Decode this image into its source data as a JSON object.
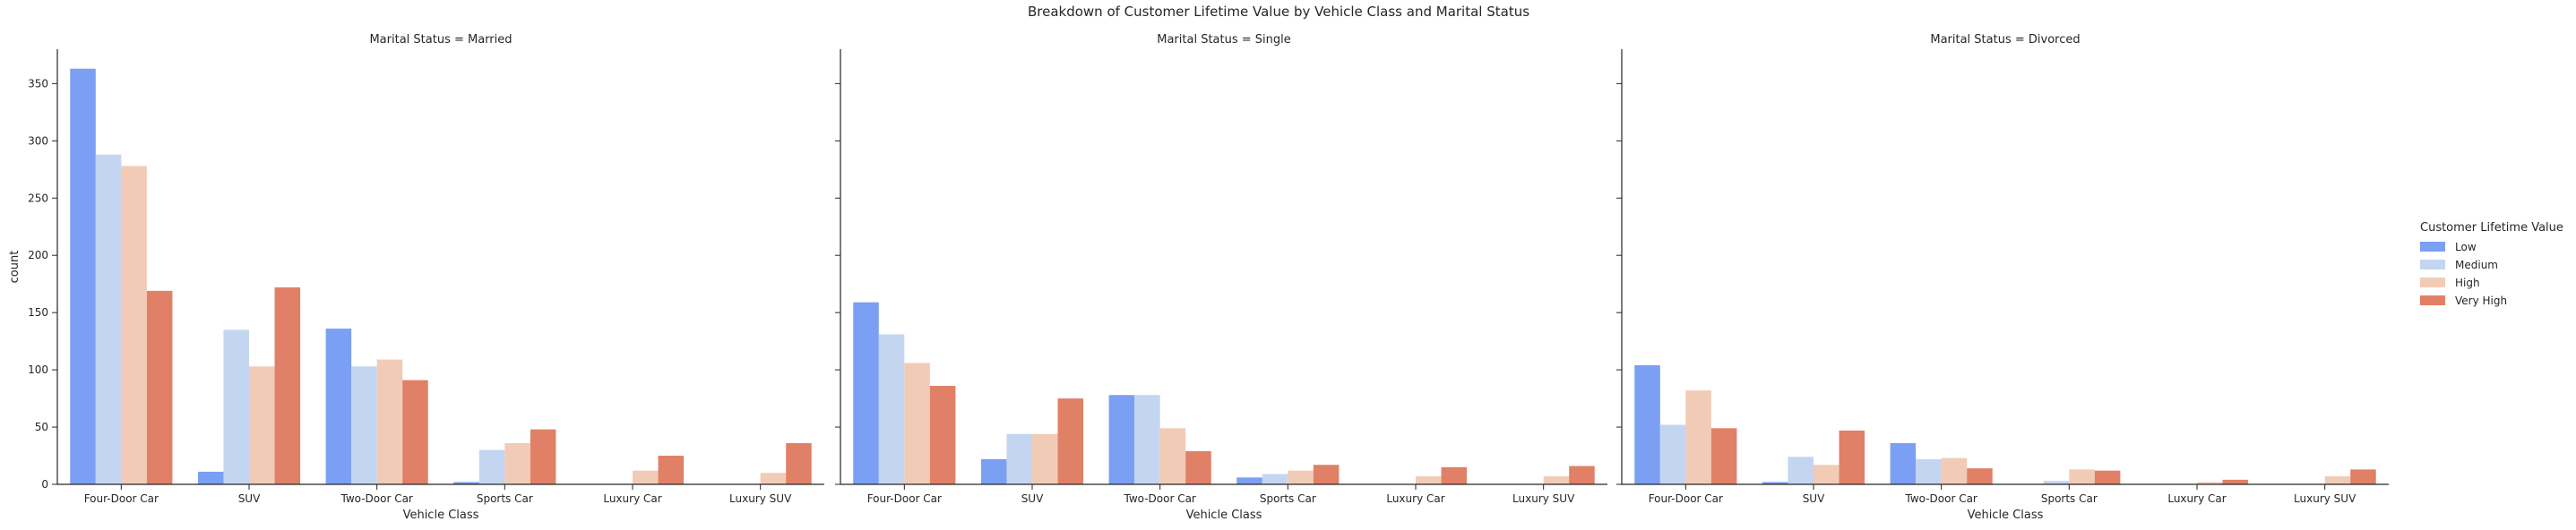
{
  "chart_data": {
    "type": "bar",
    "title": "Breakdown of Customer Lifetime Value by Vehicle Class and Marital Status",
    "xlabel": "Vehicle Class",
    "ylabel": "count",
    "ylim": [
      0,
      380
    ],
    "yticks": [
      0,
      50,
      100,
      150,
      200,
      250,
      300,
      350
    ],
    "grid": false,
    "legend": {
      "title": "Customer Lifetime Value",
      "placement": "right",
      "entries": [
        "Low",
        "Medium",
        "High",
        "Very High"
      ]
    },
    "colors": {
      "Low": "#7b9ff2",
      "Medium": "#c3d5f0",
      "High": "#f2cbb7",
      "Very High": "#e08066"
    },
    "categories": [
      "Four-Door Car",
      "SUV",
      "Two-Door Car",
      "Sports Car",
      "Luxury Car",
      "Luxury SUV"
    ],
    "panels": [
      {
        "title": "Marital Status = Married",
        "series": [
          {
            "name": "Low",
            "values": [
              363,
              11,
              136,
              2,
              0,
              0
            ]
          },
          {
            "name": "Medium",
            "values": [
              288,
              135,
              103,
              30,
              0,
              0
            ]
          },
          {
            "name": "High",
            "values": [
              278,
              103,
              109,
              36,
              12,
              10
            ]
          },
          {
            "name": "Very High",
            "values": [
              169,
              172,
              91,
              48,
              25,
              36
            ]
          }
        ]
      },
      {
        "title": "Marital Status = Single",
        "series": [
          {
            "name": "Low",
            "values": [
              159,
              22,
              78,
              6,
              0,
              0
            ]
          },
          {
            "name": "Medium",
            "values": [
              131,
              44,
              78,
              9,
              0,
              0
            ]
          },
          {
            "name": "High",
            "values": [
              106,
              44,
              49,
              12,
              7,
              7
            ]
          },
          {
            "name": "Very High",
            "values": [
              86,
              75,
              29,
              17,
              15,
              16
            ]
          }
        ]
      },
      {
        "title": "Marital Status = Divorced",
        "series": [
          {
            "name": "Low",
            "values": [
              104,
              2,
              36,
              0,
              0,
              0
            ]
          },
          {
            "name": "Medium",
            "values": [
              52,
              24,
              22,
              3,
              0,
              0
            ]
          },
          {
            "name": "High",
            "values": [
              82,
              17,
              23,
              13,
              2,
              7
            ]
          },
          {
            "name": "Very High",
            "values": [
              49,
              47,
              14,
              12,
              4,
              13
            ]
          }
        ]
      }
    ]
  }
}
